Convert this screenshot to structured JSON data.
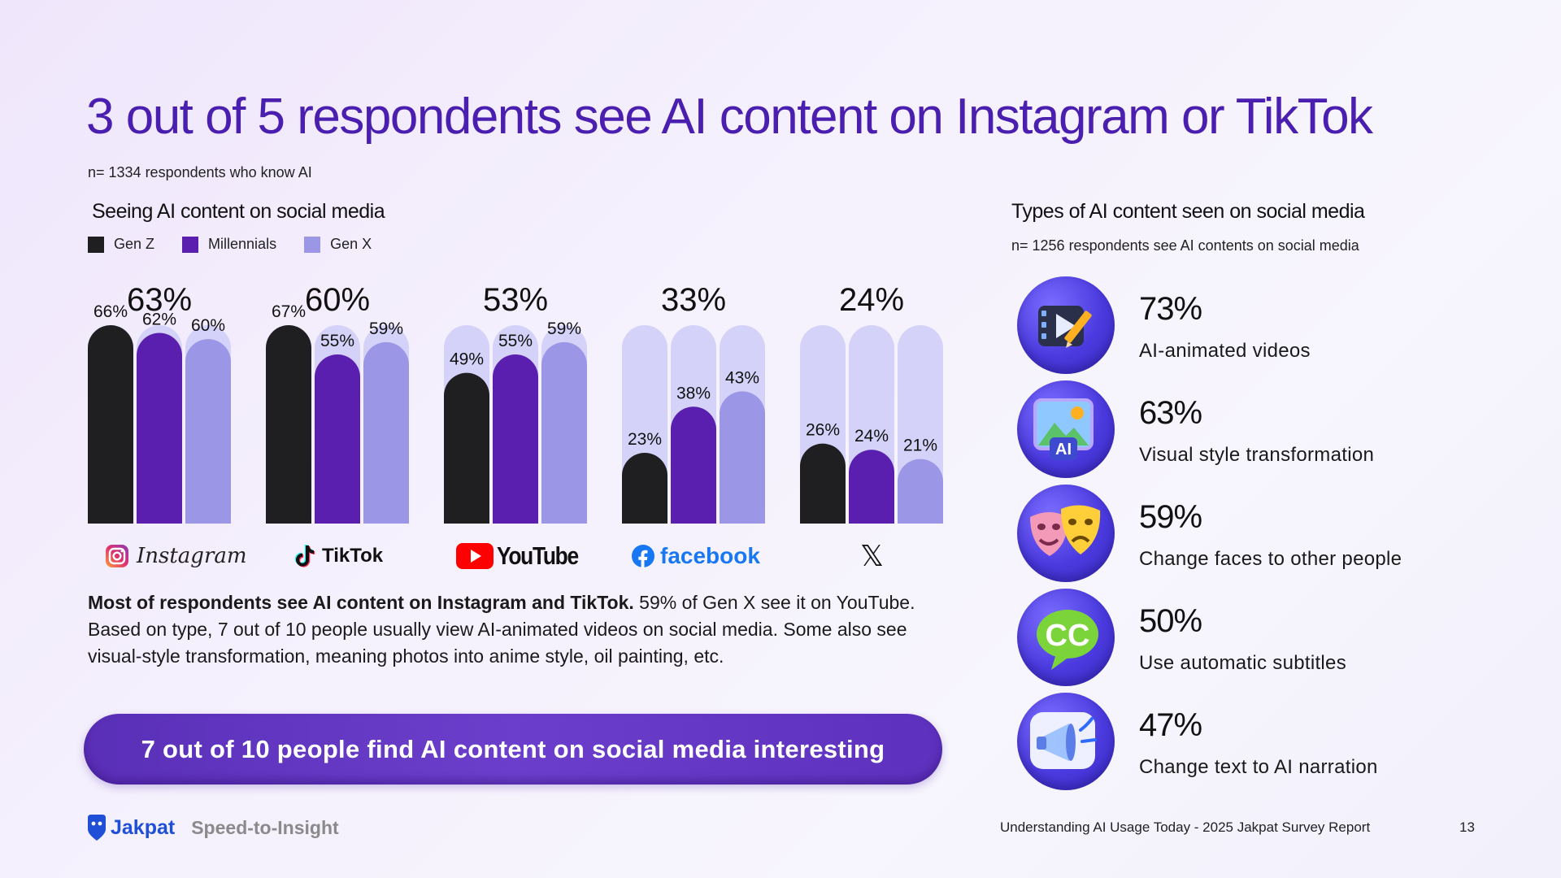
{
  "title": "3 out of 5 respondents see AI content on Instagram or TikTok",
  "sample_note": "n= 1334 respondents who know AI",
  "left_section": {
    "heading": "Seeing AI content on social media",
    "legend": [
      {
        "label": "Gen Z",
        "color": "#1f1f22"
      },
      {
        "label": "Millennials",
        "color": "#5a1fae"
      },
      {
        "label": "Gen X",
        "color": "#9b96e6"
      }
    ]
  },
  "chart_data": {
    "type": "bar",
    "categories": [
      "Instagram",
      "TikTok",
      "YouTube",
      "facebook",
      "X"
    ],
    "totals": [
      "63%",
      "60%",
      "53%",
      "33%",
      "24%"
    ],
    "series": [
      {
        "name": "Gen Z",
        "values": [
          66,
          67,
          49,
          23,
          26
        ],
        "color": "#1f1f22"
      },
      {
        "name": "Millennials",
        "values": [
          62,
          55,
          55,
          38,
          24
        ],
        "color": "#5a1fae"
      },
      {
        "name": "Gen X",
        "values": [
          60,
          59,
          59,
          43,
          21
        ],
        "color": "#9b96e6"
      }
    ],
    "value_suffix": "%",
    "ylim": [
      0,
      100
    ],
    "track_color": "#d4d2f8"
  },
  "platforms": {
    "instagram": "Instagram",
    "tiktok": "TikTok",
    "youtube": "YouTube",
    "facebook": "facebook",
    "x": "𝕏"
  },
  "summary": {
    "bold": "Most of respondents see AI content on Instagram and TikTok.",
    "rest": " 59% of Gen X see it on YouTube. Based on type, 7 out of 10 people usually view AI-animated videos on social media. Some also see visual-style transformation, meaning photos into anime style, oil painting, etc."
  },
  "banner": "7 out of 10 people find AI content on social media interesting",
  "right_section": {
    "heading": "Types of AI content seen on social media",
    "note": "n= 1256 respondents see AI contents on social media",
    "items": [
      {
        "pct": "73%",
        "label": "AI-animated videos",
        "icon": "video-pencil-icon"
      },
      {
        "pct": "63%",
        "label": "Visual style transformation",
        "icon": "ai-image-icon"
      },
      {
        "pct": "59%",
        "label": "Change faces to other people",
        "icon": "theater-masks-icon"
      },
      {
        "pct": "50%",
        "label": "Use automatic subtitles",
        "icon": "cc-bubble-icon"
      },
      {
        "pct": "47%",
        "label": "Change text to AI narration",
        "icon": "megaphone-icon"
      }
    ]
  },
  "footer": {
    "brand": "Jakpat",
    "tagline": "Speed-to-Insight",
    "report": "Understanding AI Usage Today - 2025 Jakpat Survey Report",
    "page": "13"
  }
}
